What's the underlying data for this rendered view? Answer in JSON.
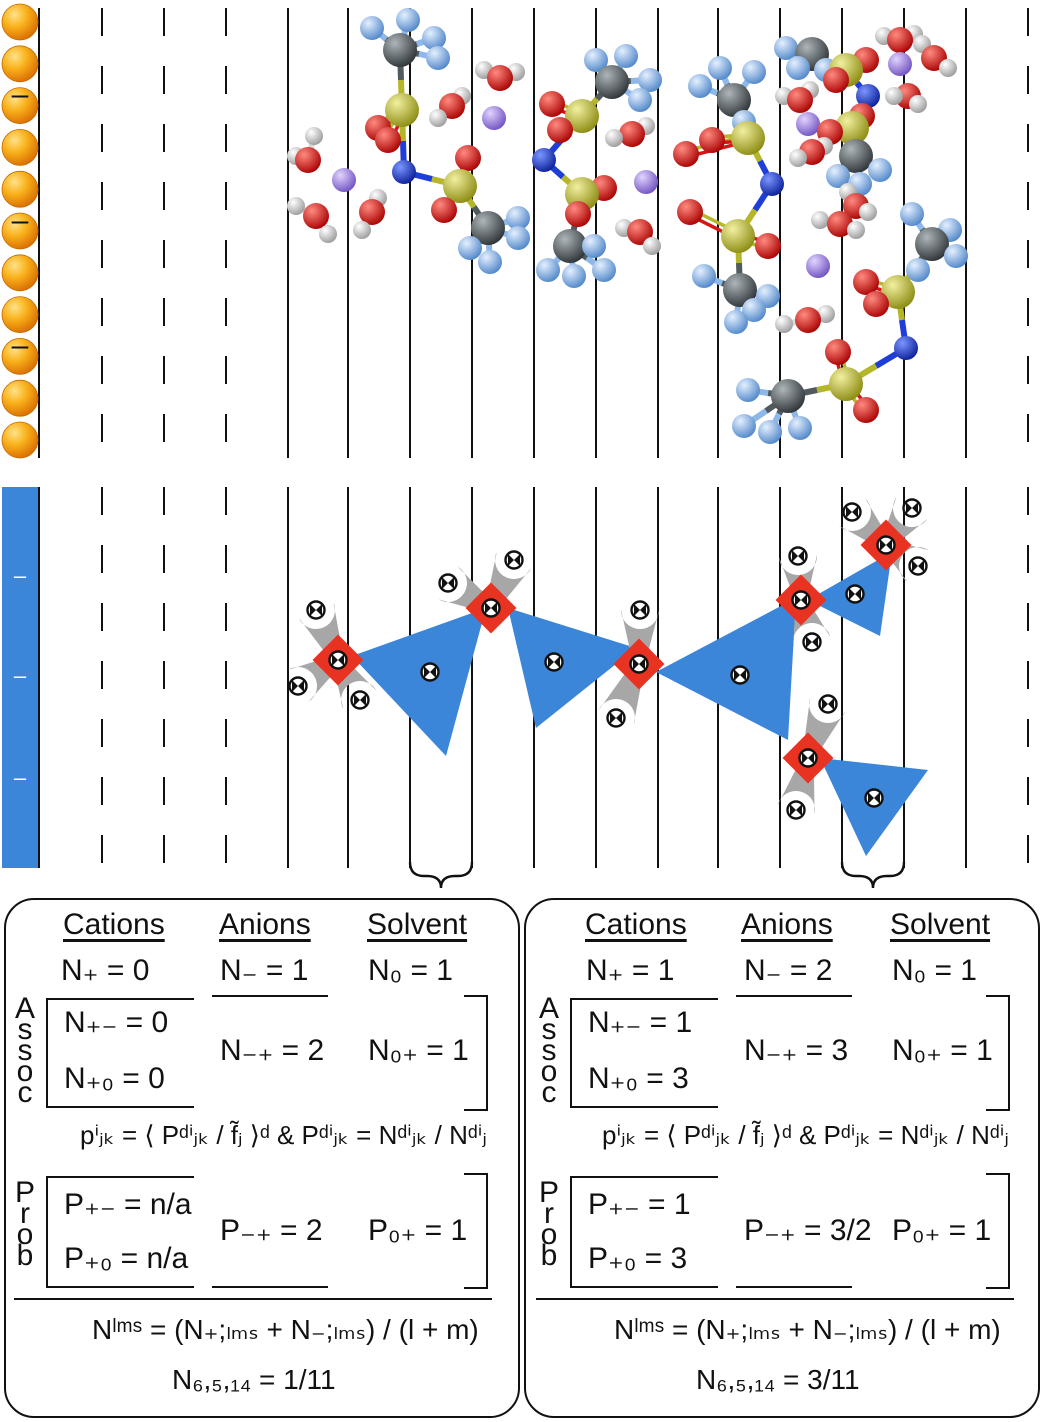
{
  "colors": {
    "electrode_top": "#f39a10",
    "electrode_bottom": "#3b86d8",
    "anion_triangle": "#3b86d8",
    "cation_square": "#e83222",
    "solvent_blob": "#a7a7a7",
    "sulfur": "#b6b62a",
    "oxygen": "#d61616",
    "fluorine": "#8db8ea",
    "carbon": "#505a5f",
    "nitrogen": "#1f3ed8",
    "lithium": "#9f84de",
    "hydrogen": "#dadada"
  },
  "electrode": {
    "top_charge_marks": [
      "–",
      "–",
      "–"
    ],
    "bottom_charge_marks": [
      "–",
      "–",
      "–"
    ]
  },
  "panels": {
    "left": {
      "headers": [
        "Cations",
        "Anions",
        "Solvent"
      ],
      "counts": [
        "N₊ = 0",
        "N₋ = 1",
        "N₀ = 1"
      ],
      "assoc_label": [
        "A",
        "s",
        "s",
        "o",
        "c"
      ],
      "assoc": [
        "N₊₋ = 0",
        "N₊₀ = 0",
        "N₋₊ = 2",
        "N₀₊ = 1"
      ],
      "formula": "pⁱⱼₖ = ⟨ Pᵈⁱⱼₖ / f̃ⱼ ⟩ᵈ  &  Pᵈⁱⱼₖ = Nᵈⁱⱼₖ / Nᵈⁱⱼ",
      "prob_label": [
        "P",
        "r",
        "o",
        "b"
      ],
      "prob": [
        "P₊₋ = n/a",
        "P₊₀ = n/a",
        "P₋₊ = 2",
        "P₀₊ = 1"
      ],
      "lms_formula": "Nˡᵐˢ = (N₊;ₗₘₛ + N₋;ₗₘₛ) / (l + m)",
      "result": "N₆,₅,₁₄ = 1/11"
    },
    "right": {
      "headers": [
        "Cations",
        "Anions",
        "Solvent"
      ],
      "counts": [
        "N₊ = 1",
        "N₋ = 2",
        "N₀ = 1"
      ],
      "assoc_label": [
        "A",
        "s",
        "s",
        "o",
        "c"
      ],
      "assoc": [
        "N₊₋ = 1",
        "N₊₀ = 3",
        "N₋₊ = 3",
        "N₀₊ = 1"
      ],
      "formula": "pⁱⱼₖ = ⟨ Pᵈⁱⱼₖ / f̃ⱼ ⟩ᵈ  &  Pᵈⁱⱼₖ = Nᵈⁱⱼₖ / Nᵈⁱⱼ",
      "prob_label": [
        "P",
        "r",
        "o",
        "b"
      ],
      "prob": [
        "P₊₋ = 1",
        "P₊₀ = 3",
        "P₋₊ = 3/2",
        "P₀₊ = 1"
      ],
      "lms_formula": "Nˡᵐˢ = (N₊;ₗₘₛ + N₋;ₗₘₛ) / (l + m)",
      "result": "N₆,₅,₁₄ = 3/11"
    }
  }
}
